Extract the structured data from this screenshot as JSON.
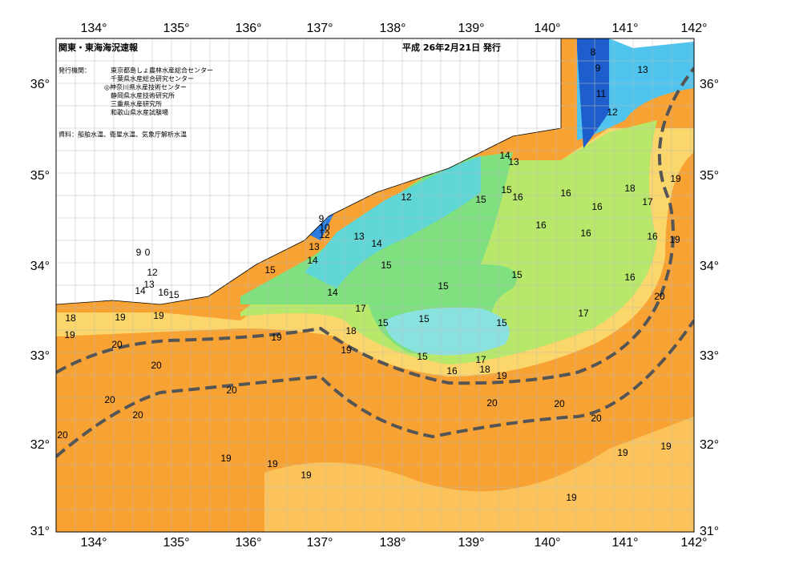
{
  "header": {
    "title": "関東・東海海況速報",
    "issued": "平成 26年2月21日 発行",
    "issuers_label": "発行機関：",
    "issuers": [
      "東京都島しょ農林水産総合センター",
      "千葉県水産総合研究センター",
      "◎神奈川県水産技術センター",
      "静岡県水産技術研究所",
      "三重県水産研究所",
      "和歌山県水産試験場"
    ],
    "source": "資料：船舶水温、衛星水温、気象庁解析水温"
  },
  "longitude_labels": [
    "134°",
    "135°",
    "136°",
    "137°",
    "138°",
    "139°",
    "140°",
    "141°",
    "142°"
  ],
  "latitude_labels": [
    "36°",
    "35°",
    "34°",
    "33°",
    "32°",
    "31°"
  ],
  "contour_labels": [
    "8",
    "9",
    "13",
    "11",
    "12",
    "14",
    "13",
    "19",
    "12",
    "15",
    "15",
    "16",
    "16",
    "18",
    "17",
    "16",
    "9",
    "16",
    "10",
    "12",
    "16",
    "16",
    "19",
    "13",
    "14",
    "13",
    "14",
    "9",
    "0",
    "15",
    "15",
    "12",
    "15",
    "16",
    "13",
    "14",
    "16",
    "15",
    "14",
    "15",
    "20",
    "17",
    "17",
    "18",
    "19",
    "19",
    "15",
    "15",
    "15",
    "18",
    "19",
    "19",
    "20",
    "19",
    "15",
    "17",
    "18",
    "16",
    "19",
    "20",
    "20",
    "20",
    "20",
    "20",
    "20",
    "20",
    "20",
    "19",
    "19",
    "19",
    "19",
    "19",
    "19"
  ]
}
